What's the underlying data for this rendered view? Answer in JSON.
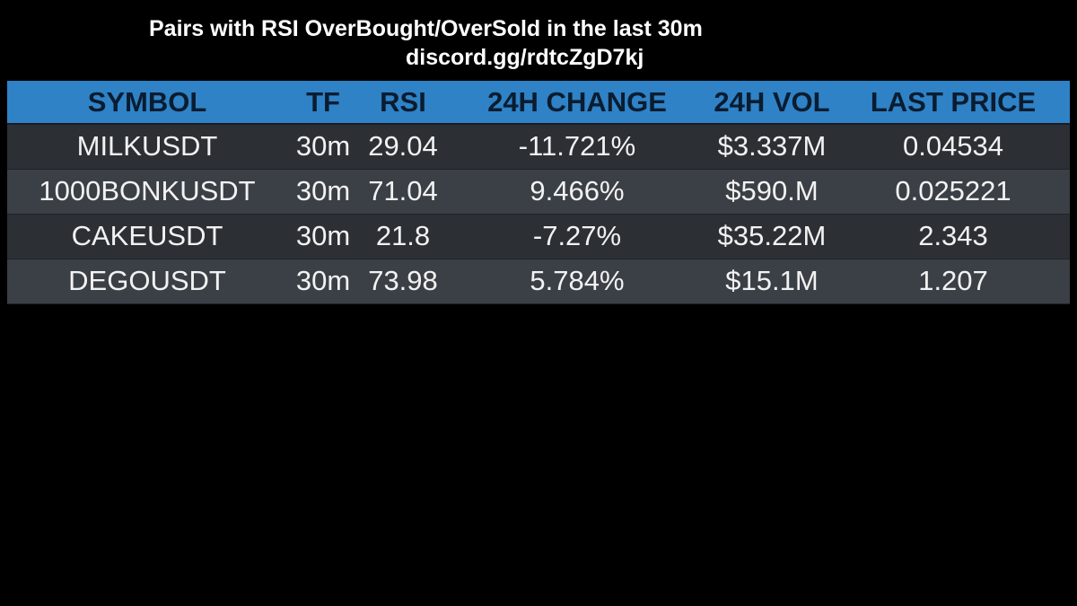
{
  "header": {
    "title": "Pairs with RSI OverBought/OverSold in the last 30m",
    "subtitle": "discord.gg/rdtcZgD7kj"
  },
  "colors": {
    "background": "#000000",
    "header_bg": "#2f82c5",
    "header_text": "#0a1c30",
    "row_dark": "#2c3035",
    "row_light": "#3b4046",
    "cell_text": "#f2f2f2"
  },
  "chart_data": {
    "type": "table",
    "columns": [
      "SYMBOL",
      "TF",
      "RSI",
      "24H CHANGE",
      "24H VOL",
      "LAST PRICE"
    ],
    "rows": [
      [
        "MILKUSDT",
        "30m",
        "29.04",
        "-11.721%",
        "$3.337M",
        "0.04534"
      ],
      [
        "1000BONKUSDT",
        "30m",
        "71.04",
        "9.466%",
        "$590.M",
        "0.025221"
      ],
      [
        "CAKEUSDT",
        "30m",
        "21.8",
        "-7.27%",
        "$35.22M",
        "2.343"
      ],
      [
        "DEGOUSDT",
        "30m",
        "73.98",
        "5.784%",
        "$15.1M",
        "1.207"
      ]
    ]
  }
}
